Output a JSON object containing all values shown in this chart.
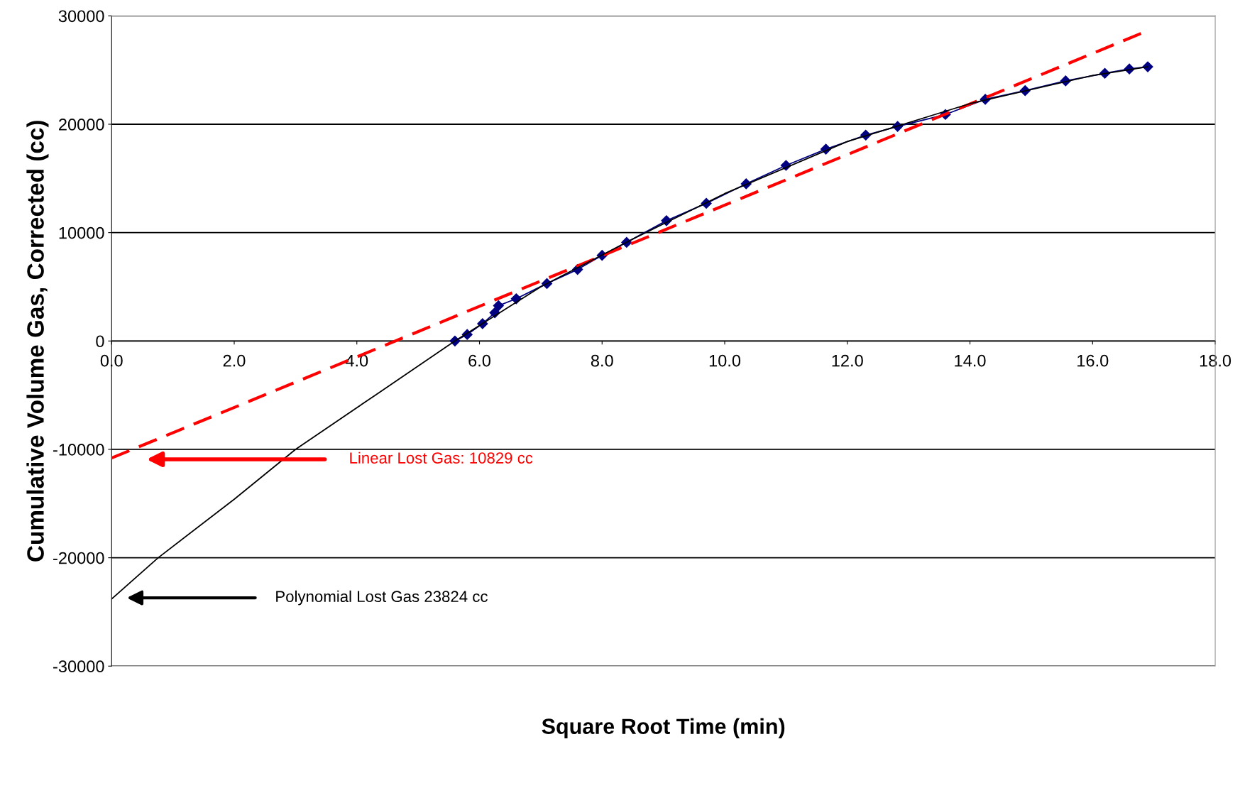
{
  "chart_data": {
    "type": "line",
    "xlabel": "Square Root Time (min)",
    "ylabel": "Cumulative Volume Gas, Corrected (cc)",
    "xlim": [
      0,
      18
    ],
    "ylim": [
      -30000,
      30000
    ],
    "xticks": [
      {
        "value": 0,
        "label": "0.0"
      },
      {
        "value": 2,
        "label": "2.0"
      },
      {
        "value": 4,
        "label": "4.0"
      },
      {
        "value": 6,
        "label": "6.0"
      },
      {
        "value": 8,
        "label": "8.0"
      },
      {
        "value": 10,
        "label": "10.0"
      },
      {
        "value": 12,
        "label": "12.0"
      },
      {
        "value": 14,
        "label": "14.0"
      },
      {
        "value": 16,
        "label": "16.0"
      },
      {
        "value": 18,
        "label": "18.0"
      }
    ],
    "yticks": [
      -30000,
      -20000,
      -10000,
      0,
      10000,
      20000,
      30000
    ],
    "grid": "y",
    "legend": false,
    "series": [
      {
        "color": "#000080",
        "marker": "diamond",
        "line_style": "solid",
        "x": [
          5.6,
          5.8,
          6.05,
          6.25,
          6.31,
          6.6,
          7.1,
          7.6,
          8.0,
          8.4,
          9.05,
          9.7,
          10.35,
          11.0,
          11.65,
          12.3,
          12.82,
          13.6,
          14.25,
          14.9,
          15.56,
          16.2,
          16.6,
          16.9
        ],
        "values": [
          0,
          600,
          1600,
          2600,
          3260,
          3900,
          5300,
          6600,
          7900,
          9100,
          11100,
          12700,
          14500,
          16200,
          17700,
          19000,
          19800,
          20900,
          22300,
          23100,
          24000,
          24700,
          25100,
          25300
        ]
      },
      {
        "color": "#ff0000",
        "marker": "none",
        "line_style": "dashed",
        "x": [
          0,
          16.8
        ],
        "values": [
          -10800,
          28400
        ]
      },
      {
        "color": "#000000",
        "marker": "none",
        "line_style": "solid",
        "x": [
          0,
          0.76,
          2,
          3,
          4.3,
          5.6,
          7,
          8.5,
          10,
          12,
          14,
          16,
          16.9
        ],
        "values": [
          -23800,
          -20000,
          -14600,
          -10000,
          -5000,
          0,
          5000,
          9400,
          13600,
          18400,
          21900,
          24500,
          25300
        ]
      }
    ],
    "annotations": [
      "Linear Lost Gas: 10829 cc",
      "Polynomial Lost Gas 23824 cc"
    ]
  }
}
